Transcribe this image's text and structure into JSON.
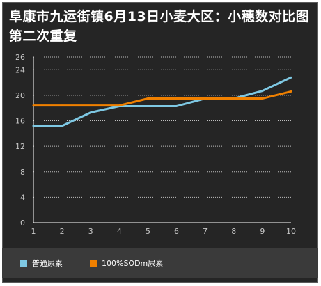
{
  "title": "阜康市九运街镇6月13日小麦大区：小穗数对比图第二次重复",
  "colors": {
    "series1": "#7ec8e3",
    "series2": "#f08000",
    "grid": "#bfbfbf",
    "tick_text": "#c8c8c8"
  },
  "chart_data": {
    "type": "line",
    "title": "阜康市九运街镇6月13日小麦大区：小穗数对比图第二次重复",
    "xlabel": "",
    "ylabel": "",
    "x": [
      1,
      2,
      3,
      4,
      5,
      6,
      7,
      8,
      9,
      10
    ],
    "x_tick_labels": [
      "1",
      "2",
      "3",
      "4",
      "5",
      "6",
      "7",
      "8",
      "9",
      "10"
    ],
    "ylim": [
      0,
      26
    ],
    "y_ticks": [
      0,
      4,
      8,
      12,
      16,
      20,
      24,
      26
    ],
    "y_tick_labels": [
      "0",
      "4",
      "8",
      "12",
      "16",
      "20",
      "24",
      "26"
    ],
    "grid": "horizontal dotted",
    "legend_position": "bottom",
    "series": [
      {
        "name": "普通尿素",
        "values": [
          15.2,
          15.2,
          17.3,
          18.3,
          18.3,
          18.3,
          19.5,
          19.5,
          20.7,
          22.8
        ]
      },
      {
        "name": "100%SODm尿素",
        "values": [
          18.4,
          18.4,
          18.4,
          18.4,
          19.5,
          19.5,
          19.5,
          19.5,
          19.5,
          20.6
        ]
      }
    ]
  }
}
